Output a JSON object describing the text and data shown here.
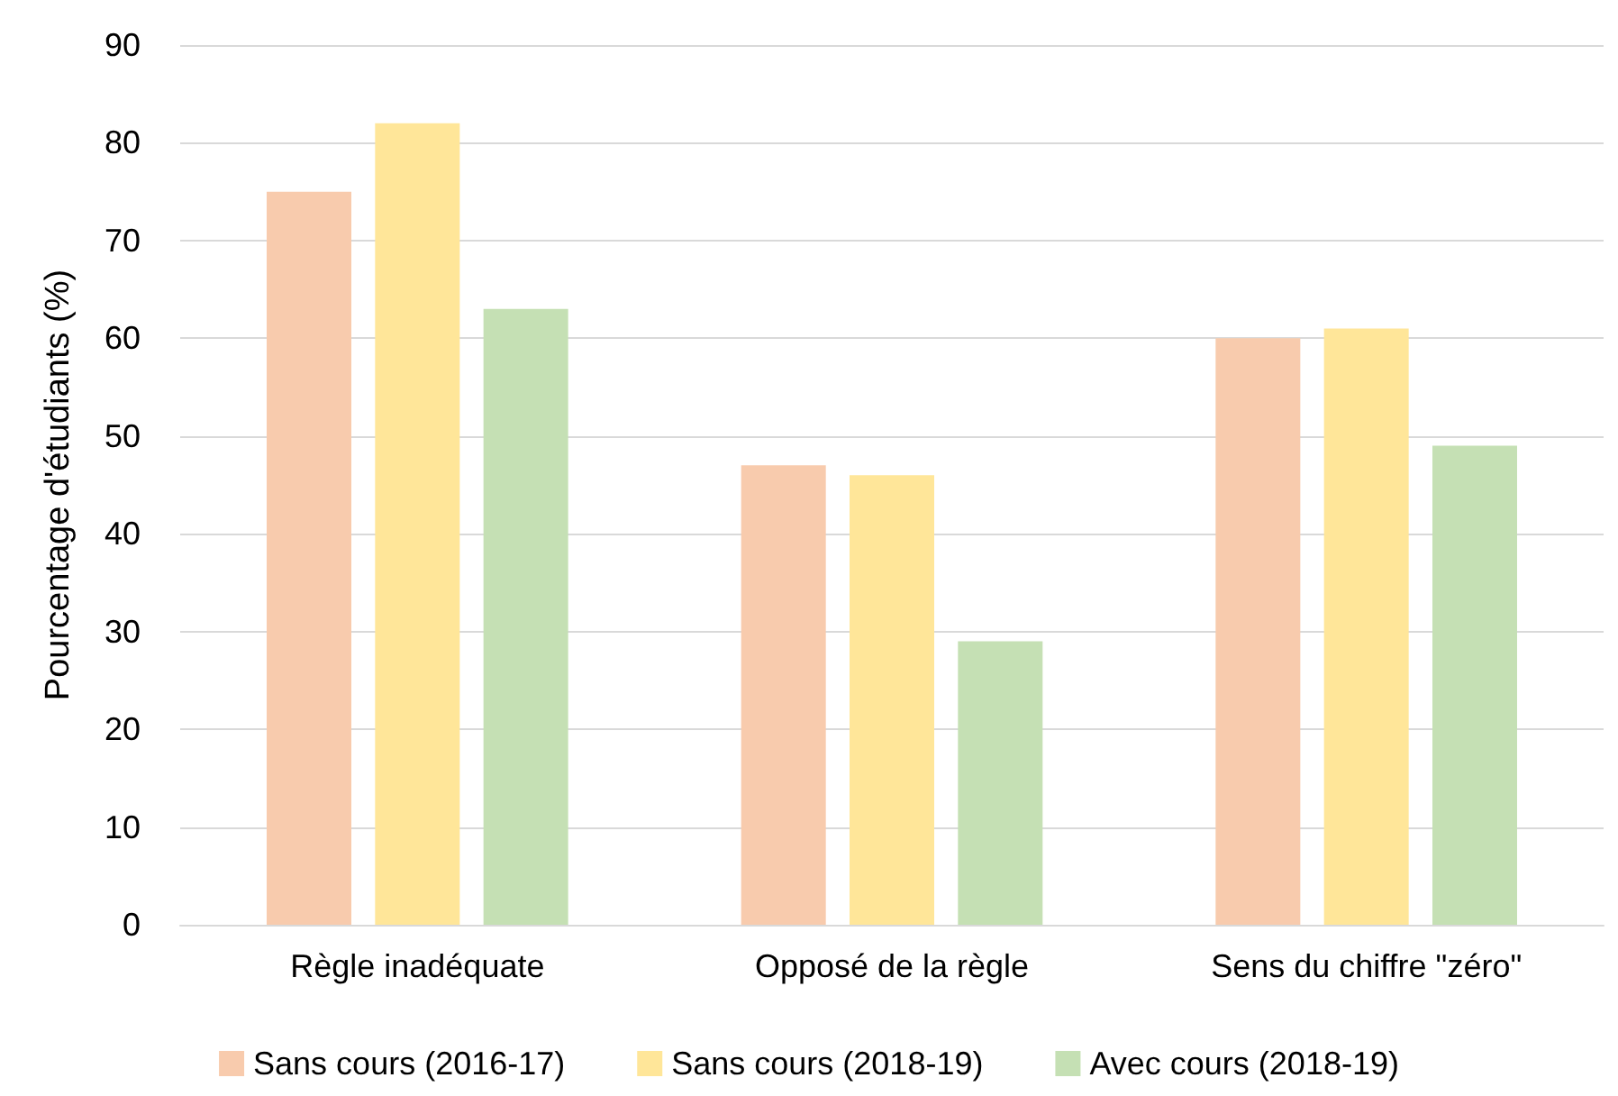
{
  "chart_data": {
    "type": "bar",
    "ylabel": "Pourcentage d'étudiants (%)",
    "categories": [
      "Règle inadéquate",
      "Opposé de la règle",
      "Sens du chiffre \"zéro\""
    ],
    "series": [
      {
        "name": "Sans cours (2016-17)",
        "color": "#f8cbad",
        "values": [
          75,
          47,
          60
        ]
      },
      {
        "name": "Sans cours (2018-19)",
        "color": "#ffe699",
        "values": [
          82,
          46,
          61
        ]
      },
      {
        "name": "Avec cours (2018-19)",
        "color": "#c5e0b4",
        "values": [
          63,
          29,
          49
        ]
      }
    ],
    "ylim": [
      0,
      90
    ],
    "yticks": [
      0,
      10,
      20,
      30,
      40,
      50,
      60,
      70,
      80,
      90
    ],
    "grid": "y",
    "legend": "bottom"
  }
}
